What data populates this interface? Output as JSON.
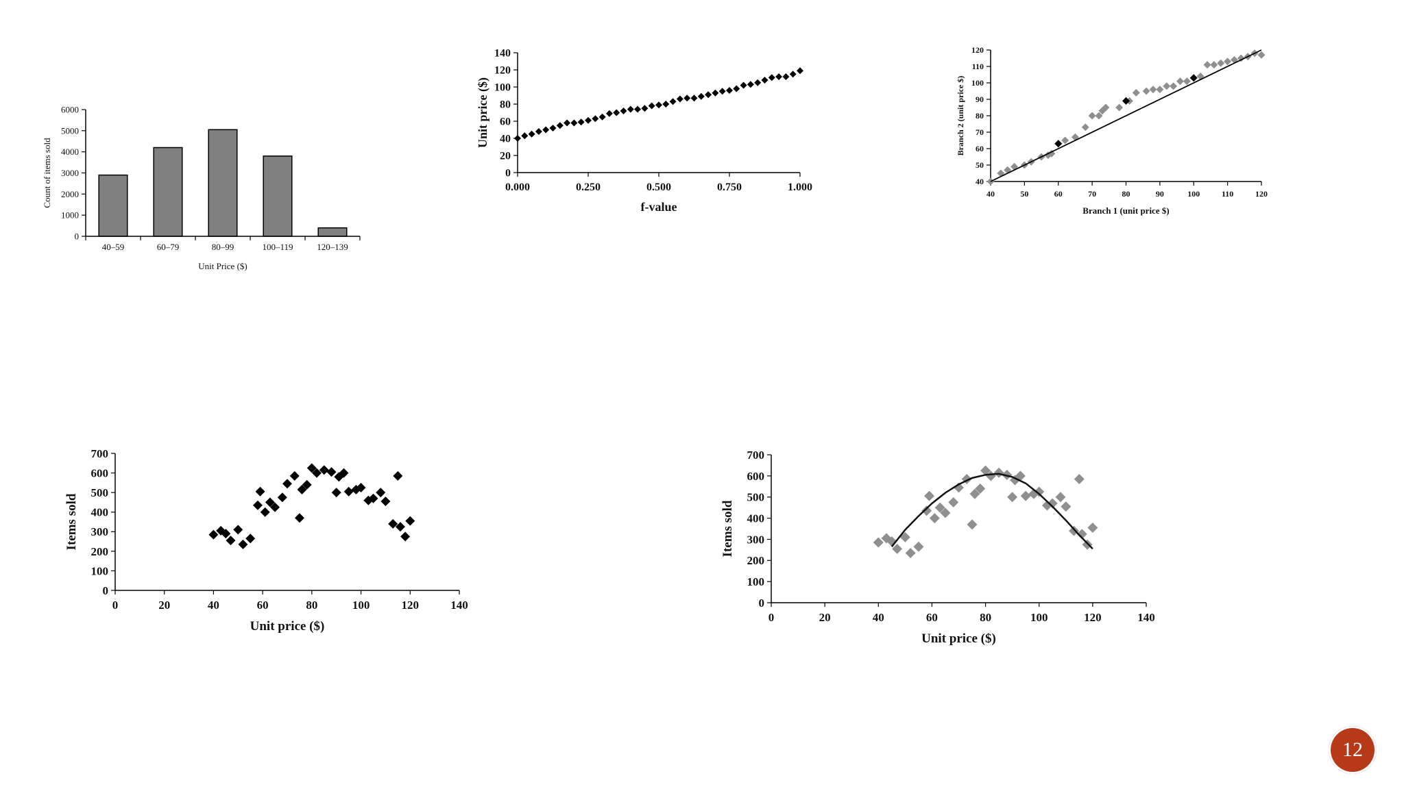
{
  "slide": {
    "page_number": "12"
  },
  "chart_data": [
    {
      "type": "bar",
      "categories": [
        "40–59",
        "60–79",
        "80–99",
        "100–119",
        "120–139"
      ],
      "values": [
        2900,
        4200,
        5050,
        3800,
        400
      ],
      "xlabel": "Unit Price ($)",
      "ylabel": "Count of items sold",
      "ylim": [
        0,
        6000
      ],
      "yticks": [
        "0",
        "1000",
        "2000",
        "3000",
        "4000",
        "5000",
        "6000"
      ],
      "bar_color": "#808080"
    },
    {
      "type": "scatter",
      "xlabel": "f-value",
      "ylabel": "Unit price ($)",
      "xlim": [
        0,
        1
      ],
      "ylim": [
        0,
        140
      ],
      "xticks": [
        "0.000",
        "0.250",
        "0.500",
        "0.750",
        "1.000"
      ],
      "yticks": [
        "0",
        "20",
        "40",
        "60",
        "80",
        "100",
        "120",
        "140"
      ],
      "x": [
        0.0,
        0.025,
        0.05,
        0.075,
        0.1,
        0.125,
        0.15,
        0.175,
        0.2,
        0.225,
        0.25,
        0.275,
        0.3,
        0.325,
        0.35,
        0.375,
        0.4,
        0.425,
        0.45,
        0.475,
        0.5,
        0.525,
        0.55,
        0.575,
        0.6,
        0.625,
        0.65,
        0.675,
        0.7,
        0.725,
        0.75,
        0.775,
        0.8,
        0.825,
        0.85,
        0.875,
        0.9,
        0.925,
        0.95,
        0.975,
        1.0
      ],
      "y": [
        40,
        43,
        45,
        48,
        50,
        52,
        55,
        58,
        58,
        59,
        61,
        63,
        65,
        69,
        70,
        72,
        74,
        74,
        75,
        78,
        79,
        80,
        83,
        86,
        87,
        87,
        89,
        91,
        93,
        95,
        96,
        98,
        102,
        103,
        105,
        108,
        111,
        112,
        112,
        115,
        119
      ],
      "marker_color": "#000000"
    },
    {
      "type": "scatter",
      "xlabel": "Branch 1 (unit price $)",
      "ylabel": "Branch 2 (unit price $)",
      "xlim": [
        40,
        120
      ],
      "ylim": [
        40,
        120
      ],
      "xticks": [
        "40",
        "50",
        "60",
        "70",
        "80",
        "90",
        "100",
        "110",
        "120"
      ],
      "yticks": [
        "40",
        "50",
        "60",
        "70",
        "80",
        "90",
        "100",
        "110",
        "120"
      ],
      "x": [
        40,
        43,
        45,
        47,
        50,
        52,
        55,
        57,
        58,
        60,
        62,
        65,
        68,
        70,
        72,
        73,
        74,
        78,
        80,
        81,
        83,
        86,
        88,
        90,
        92,
        94,
        96,
        98,
        100,
        102,
        104,
        106,
        108,
        110,
        112,
        114,
        116,
        118,
        120
      ],
      "y": [
        40,
        45,
        47,
        49,
        50,
        52,
        55,
        56,
        57,
        63,
        65,
        67,
        73,
        80,
        80,
        83,
        85,
        85,
        89,
        89,
        94,
        95,
        96,
        96,
        98,
        98,
        101,
        101,
        103,
        104,
        111,
        111,
        112,
        113,
        114,
        115,
        116,
        118,
        117
      ],
      "dark_x": [
        60,
        80,
        100
      ],
      "dark_y": [
        63,
        89,
        103
      ],
      "line": {
        "x": [
          40,
          120
        ],
        "y": [
          40,
          120
        ]
      },
      "marker_color": "#8f8f8f",
      "dark_marker_color": "#000000"
    },
    {
      "type": "scatter",
      "xlabel": "Unit price ($)",
      "ylabel": "Items sold",
      "xlim": [
        0,
        140
      ],
      "ylim": [
        0,
        700
      ],
      "xticks": [
        "0",
        "20",
        "40",
        "60",
        "80",
        "100",
        "120",
        "140"
      ],
      "yticks": [
        "0",
        "100",
        "200",
        "300",
        "400",
        "500",
        "600",
        "700"
      ],
      "x": [
        40,
        43,
        45,
        47,
        50,
        52,
        55,
        58,
        59,
        61,
        63,
        65,
        68,
        70,
        73,
        75,
        76,
        78,
        80,
        82,
        85,
        88,
        90,
        91,
        93,
        95,
        98,
        100,
        103,
        105,
        108,
        110,
        113,
        115,
        116,
        118,
        120
      ],
      "y": [
        285,
        305,
        290,
        255,
        310,
        235,
        265,
        435,
        505,
        400,
        450,
        425,
        475,
        545,
        585,
        370,
        515,
        540,
        625,
        600,
        615,
        605,
        500,
        580,
        600,
        505,
        515,
        525,
        460,
        470,
        500,
        455,
        340,
        585,
        325,
        275,
        355
      ],
      "marker_color": "#000000"
    },
    {
      "type": "scatter",
      "xlabel": "Unit price ($)",
      "ylabel": "Items sold",
      "xlim": [
        0,
        140
      ],
      "ylim": [
        0,
        700
      ],
      "xticks": [
        "0",
        "20",
        "40",
        "60",
        "80",
        "100",
        "120",
        "140"
      ],
      "yticks": [
        "0",
        "100",
        "200",
        "300",
        "400",
        "500",
        "600",
        "700"
      ],
      "x": [
        40,
        43,
        45,
        47,
        50,
        52,
        55,
        58,
        59,
        61,
        63,
        65,
        68,
        70,
        73,
        75,
        76,
        78,
        80,
        82,
        85,
        88,
        90,
        91,
        93,
        95,
        98,
        100,
        103,
        105,
        108,
        110,
        113,
        115,
        116,
        118,
        120
      ],
      "y": [
        285,
        305,
        290,
        255,
        310,
        235,
        265,
        435,
        505,
        400,
        450,
        425,
        475,
        545,
        585,
        370,
        515,
        540,
        625,
        600,
        615,
        605,
        500,
        580,
        600,
        505,
        515,
        525,
        460,
        470,
        500,
        455,
        340,
        585,
        325,
        275,
        355
      ],
      "curve": {
        "x": [
          45,
          50,
          55,
          60,
          65,
          70,
          75,
          80,
          85,
          90,
          95,
          100,
          105,
          110,
          115,
          120
        ],
        "y": [
          265,
          345,
          410,
          470,
          520,
          560,
          590,
          605,
          610,
          595,
          565,
          515,
          455,
          390,
          320,
          255
        ]
      },
      "marker_color": "#8f8f8f"
    }
  ]
}
